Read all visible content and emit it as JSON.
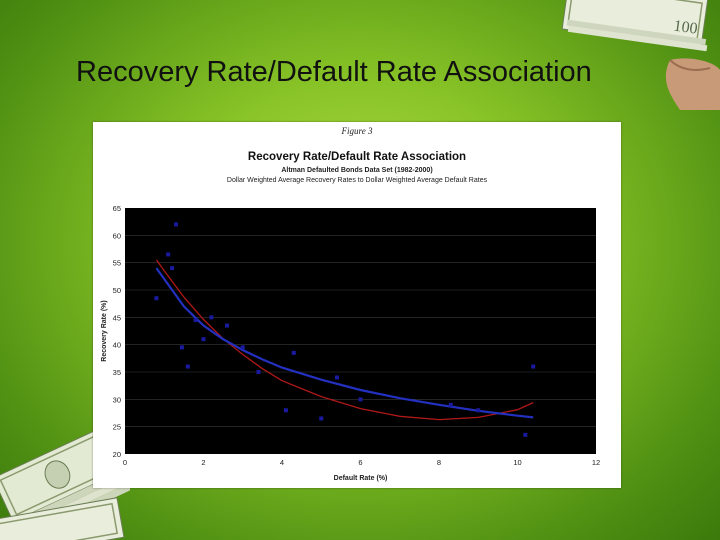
{
  "slide": {
    "title": "Recovery Rate/Default Rate Association"
  },
  "figure": {
    "label": "Figure 3"
  },
  "colors": {
    "plot_bg": "#000000",
    "points": "#1a1aa0",
    "curve_red": "#b01818",
    "curve_blue": "#2330c0",
    "background_green": "#86c226"
  },
  "decor_icons": [
    "money-stack-icon",
    "hand-holding-cash-icon"
  ],
  "chart_data": {
    "type": "scatter",
    "title": "Recovery Rate/Default Rate Association",
    "subtitle": "Altman Defaulted Bonds Data Set (1982-2000)",
    "subtitle2": "Dollar Weighted Average Recovery Rates to Dollar Weighted Average Default Rates",
    "xlabel": "Default Rate (%)",
    "ylabel": "Recovery Rate (%)",
    "xlim": [
      0,
      12
    ],
    "ylim": [
      20,
      65
    ],
    "xticks": [
      0,
      2,
      4,
      6,
      8,
      10,
      12
    ],
    "yticks": [
      20,
      25,
      30,
      35,
      40,
      45,
      50,
      55,
      60,
      65
    ],
    "grid": "horizontal",
    "series": [
      {
        "type": "scatter",
        "points": [
          [
            0.8,
            48.5
          ],
          [
            1.1,
            56.5
          ],
          [
            1.2,
            54.0
          ],
          [
            1.3,
            62.0
          ],
          [
            1.45,
            39.5
          ],
          [
            1.6,
            36.0
          ],
          [
            1.8,
            44.5
          ],
          [
            2.0,
            41.0
          ],
          [
            2.2,
            45.0
          ],
          [
            2.6,
            43.5
          ],
          [
            3.0,
            39.5
          ],
          [
            3.4,
            35.0
          ],
          [
            4.1,
            28.0
          ],
          [
            4.3,
            38.5
          ],
          [
            5.0,
            26.5
          ],
          [
            5.4,
            34.0
          ],
          [
            6.0,
            30.0
          ],
          [
            8.3,
            29.0
          ],
          [
            9.0,
            28.0
          ],
          [
            10.2,
            23.5
          ],
          [
            10.4,
            36.0
          ]
        ]
      },
      {
        "type": "line",
        "points": [
          [
            0.8,
            55.5
          ],
          [
            1.0,
            53.5
          ],
          [
            1.5,
            48.7
          ],
          [
            2.0,
            44.6
          ],
          [
            2.5,
            41.1
          ],
          [
            3.0,
            38.2
          ],
          [
            3.5,
            35.6
          ],
          [
            4.0,
            33.4
          ],
          [
            5.0,
            30.5
          ],
          [
            6.0,
            28.3
          ],
          [
            7.0,
            26.9
          ],
          [
            8.0,
            26.3
          ],
          [
            9.0,
            26.7
          ],
          [
            10.0,
            28.1
          ],
          [
            10.4,
            29.4
          ]
        ]
      },
      {
        "type": "line",
        "points": [
          [
            0.8,
            54.0
          ],
          [
            1.0,
            52.0
          ],
          [
            1.5,
            47.0
          ],
          [
            2.0,
            43.5
          ],
          [
            2.5,
            41.0
          ],
          [
            3.0,
            39.0
          ],
          [
            3.5,
            37.3
          ],
          [
            4.0,
            35.8
          ],
          [
            5.0,
            33.6
          ],
          [
            6.0,
            31.7
          ],
          [
            7.0,
            30.2
          ],
          [
            8.0,
            29.0
          ],
          [
            9.0,
            27.9
          ],
          [
            10.0,
            27.0
          ],
          [
            10.4,
            26.7
          ]
        ]
      }
    ]
  }
}
